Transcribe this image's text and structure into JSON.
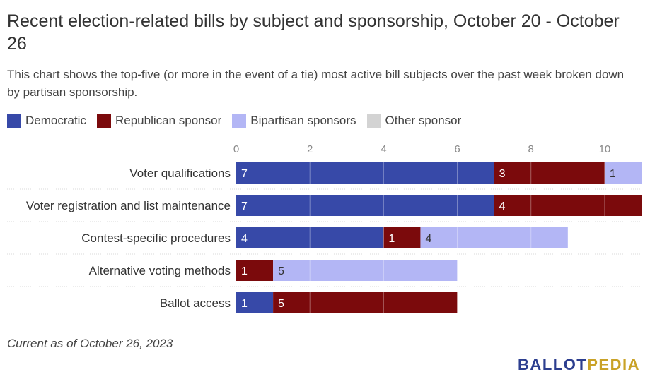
{
  "title": "Recent election-related bills by subject and sponsorship, October 20 - October 26",
  "subtitle": "This chart shows the top-five (or more in the event of a tie) most active bill subjects over the past week broken down by partisan sponsorship.",
  "legend": [
    {
      "label": "Democratic",
      "color": "#3749a8"
    },
    {
      "label": "Republican sponsor",
      "color": "#7b0a0c"
    },
    {
      "label": "Bipartisan sponsors",
      "color": "#b3b6f5"
    },
    {
      "label": "Other sponsor",
      "color": "#d3d3d3"
    }
  ],
  "footnote": "Current as of October 26, 2023",
  "logo": {
    "part1": "BALLOT",
    "part2": "PEDIA"
  },
  "chart_data": {
    "type": "bar",
    "orientation": "horizontal",
    "stacked": true,
    "categories": [
      "Voter qualifications",
      "Voter registration and list maintenance",
      "Contest-specific procedures",
      "Alternative voting methods",
      "Ballot access"
    ],
    "series": [
      {
        "name": "Democratic",
        "color": "#3749a8",
        "values": [
          7,
          7,
          4,
          0,
          1
        ]
      },
      {
        "name": "Republican sponsor",
        "color": "#7b0a0c",
        "values": [
          3,
          4,
          1,
          1,
          5
        ]
      },
      {
        "name": "Bipartisan sponsors",
        "color": "#b3b6f5",
        "values": [
          1,
          0,
          4,
          5,
          0
        ]
      },
      {
        "name": "Other sponsor",
        "color": "#d3d3d3",
        "values": [
          0,
          0,
          0,
          0,
          0
        ]
      }
    ],
    "xlim": [
      0,
      11
    ],
    "xticks": [
      0,
      2,
      4,
      6,
      8,
      10
    ],
    "axis_position": "top",
    "grid": true,
    "legend_position": "top-left"
  }
}
